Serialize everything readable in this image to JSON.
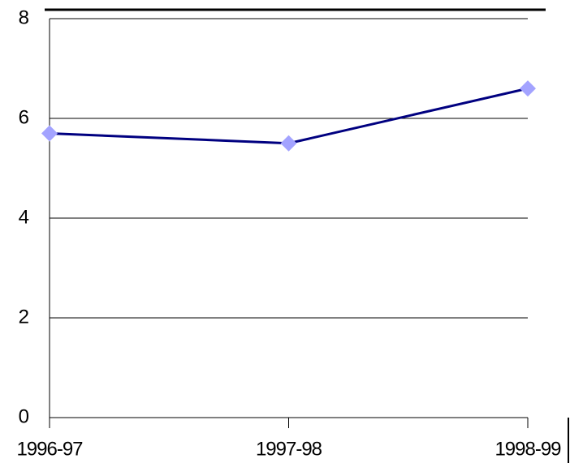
{
  "chart_data": {
    "type": "line",
    "categories": [
      "1996-97",
      "1997-98",
      "1998-99"
    ],
    "values": [
      5.7,
      5.5,
      6.6
    ],
    "color": "#000080",
    "marker_color": "#a3a3ff",
    "ylim": [
      0,
      8
    ],
    "yticks": [
      0,
      2,
      4,
      6,
      8
    ],
    "grid": true
  }
}
